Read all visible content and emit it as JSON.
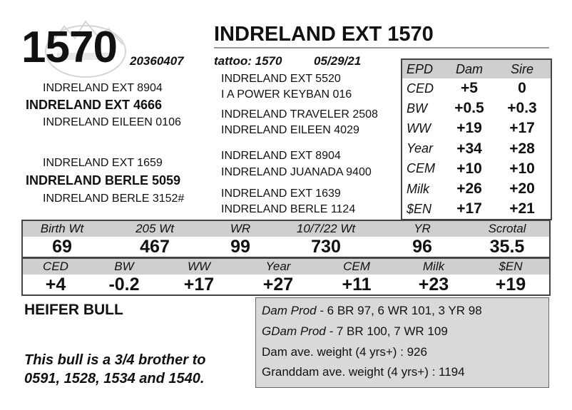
{
  "header": {
    "lot_number": "1570",
    "animal_name": "INDRELAND EXT 1570",
    "registration": "20360407",
    "tattoo_label": "tattoo:",
    "tattoo": "1570",
    "birth_date": "05/29/21"
  },
  "pedigree": {
    "sire_sire": "INDRELAND EXT 8904",
    "sire": "INDRELAND EXT 4666",
    "sire_dam": "INDRELAND EILEEN 0106",
    "ss_sire": "INDRELAND EXT 5520",
    "ss_dam": "I A POWER KEYBAN 016",
    "sd_sire": "INDRELAND TRAVELER 2508",
    "sd_dam": "INDRELAND EILEEN 4029",
    "dam_sire": "INDRELAND EXT 1659",
    "dam": "INDRELAND BERLE 5059",
    "dam_dam": "INDRELAND BERLE 3152#",
    "ds_sire": "INDRELAND EXT 8904",
    "ds_dam": "INDRELAND JUANADA 9400",
    "dd_sire": "INDRELAND EXT 1639",
    "dd_dam": "INDRELAND BERLE 1124"
  },
  "epd_table": {
    "headers": [
      "EPD",
      "Dam",
      "Sire"
    ],
    "rows": [
      {
        "trait": "CED",
        "dam": "+5",
        "sire": "0"
      },
      {
        "trait": "BW",
        "dam": "+0.5",
        "sire": "+0.3"
      },
      {
        "trait": "WW",
        "dam": "+19",
        "sire": "+17"
      },
      {
        "trait": "Year",
        "dam": "+34",
        "sire": "+28"
      },
      {
        "trait": "CEM",
        "dam": "+10",
        "sire": "+10"
      },
      {
        "trait": "Milk",
        "dam": "+26",
        "sire": "+20"
      },
      {
        "trait": "$EN",
        "dam": "+17",
        "sire": "+21"
      }
    ]
  },
  "performance": {
    "labels": [
      "Birth Wt",
      "205 Wt",
      "WR",
      "10/7/22 Wt",
      "YR",
      "Scrotal"
    ],
    "values": [
      "69",
      "467",
      "99",
      "730",
      "96",
      "35.5"
    ]
  },
  "calf_epds": {
    "labels": [
      "CED",
      "BW",
      "WW",
      "Year",
      "CEM",
      "Milk",
      "$EN"
    ],
    "values": [
      "+4",
      "-0.2",
      "+17",
      "+27",
      "+11",
      "+23",
      "+19"
    ]
  },
  "heifer_label": "HEIFER BULL",
  "note": [
    "This bull is a 3/4 brother to",
    "0591, 1528, 1534 and 1540."
  ],
  "production": {
    "dam_prod_label": "Dam Prod -",
    "dam_prod_value": " 6 BR 97, 6 WR 101, 3 YR 98",
    "gdam_prod_label": "GDam Prod -",
    "gdam_prod_value": " 7 BR 100, 7 WR 109",
    "dam_avg_weight": "Dam ave. weight (4 yrs+) : 926",
    "granddam_avg_weight": "Granddam ave. weight (4 yrs+) : 1194"
  }
}
